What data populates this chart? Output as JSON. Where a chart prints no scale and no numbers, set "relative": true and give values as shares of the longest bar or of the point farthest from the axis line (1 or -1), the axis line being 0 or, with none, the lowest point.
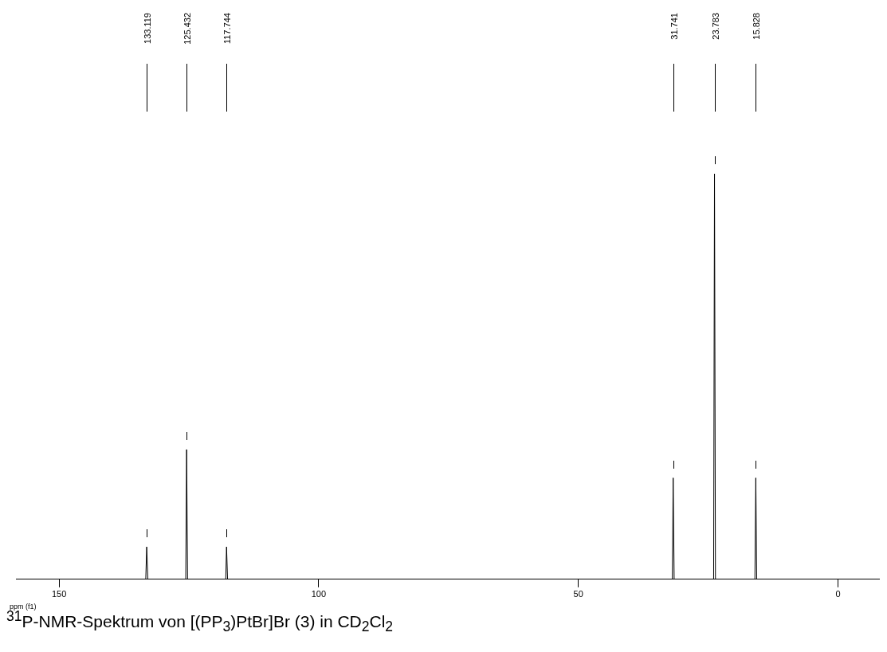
{
  "chart_data": {
    "type": "line",
    "title": "$^{31}$P-NMR-Spektrum von [(PP$_{3}$)PtBr]Br (3) in CD$_{2}$Cl$_{2}$",
    "xlabel": "ppm (f1)",
    "relative": true,
    "xlim": [
      158.3,
      -7.9
    ],
    "xticks": [
      150,
      100,
      50,
      0
    ],
    "grid": false,
    "legend": false,
    "marker": "none",
    "line_style": "solid",
    "series": [
      {
        "color": "#000000",
        "x": [
          158.3,
          133.3,
          133.119,
          132.9,
          125.6,
          125.432,
          125.25,
          117.9,
          117.744,
          117.55,
          31.9,
          31.741,
          31.55,
          23.95,
          23.783,
          23.6,
          16.0,
          15.828,
          15.65,
          -7.9
        ],
        "values": [
          0,
          0,
          0.08,
          0,
          0,
          0.32,
          0,
          0,
          0.08,
          0,
          0,
          0.25,
          0,
          0,
          1,
          0,
          0,
          0.25,
          0,
          0
        ]
      }
    ],
    "annotations": [
      "133.119",
      "125.432",
      "117.744",
      "31.741",
      "23.783",
      "15.828"
    ]
  }
}
